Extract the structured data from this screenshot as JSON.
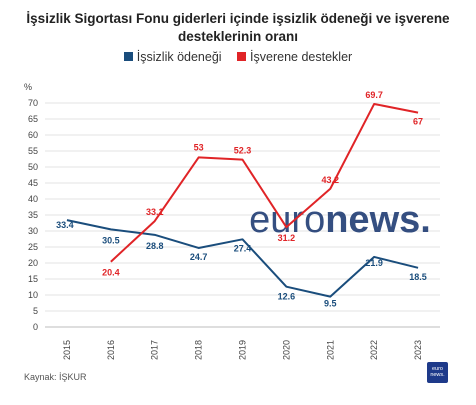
{
  "chart_data": {
    "type": "line",
    "title_lines": [
      "İşsizlik Sigortası Fonu giderleri içinde işsizlik ödeneği ve işverene",
      "desteklerinin oranı"
    ],
    "ylabel": "%",
    "ylim": [
      0,
      70
    ],
    "yticks": [
      "0",
      "5",
      "10",
      "15",
      "20",
      "25",
      "30",
      "35",
      "40",
      "45",
      "50",
      "55",
      "60",
      "65",
      "70"
    ],
    "categories": [
      "2015",
      "2016",
      "2017",
      "2018",
      "2019",
      "2020",
      "2021",
      "2022",
      "2023"
    ],
    "grid": true,
    "legend_position": "top-center",
    "series": [
      {
        "name": "İşsizlik ödeneği",
        "color": "#1a4d7c",
        "values": [
          33.4,
          30.5,
          28.8,
          24.7,
          27.4,
          12.6,
          9.5,
          21.9,
          18.5
        ],
        "labels": [
          "33.4",
          "30.5",
          "28.8",
          "24.7",
          "27.4",
          "12.6",
          "9.5",
          "21.9",
          "18.5"
        ]
      },
      {
        "name": "İşverene destekler",
        "color": "#e02427",
        "values": [
          null,
          20.4,
          33.1,
          53,
          52.3,
          31.2,
          43.2,
          69.7,
          67
        ],
        "labels": [
          "",
          "20.4",
          "33.1",
          "53",
          "52.3",
          "31.2",
          "43.2",
          "69.7",
          "67"
        ]
      }
    ]
  },
  "source": "Kaynak: İŞKUR",
  "watermark": "euronews.",
  "badge_text": "euro news."
}
